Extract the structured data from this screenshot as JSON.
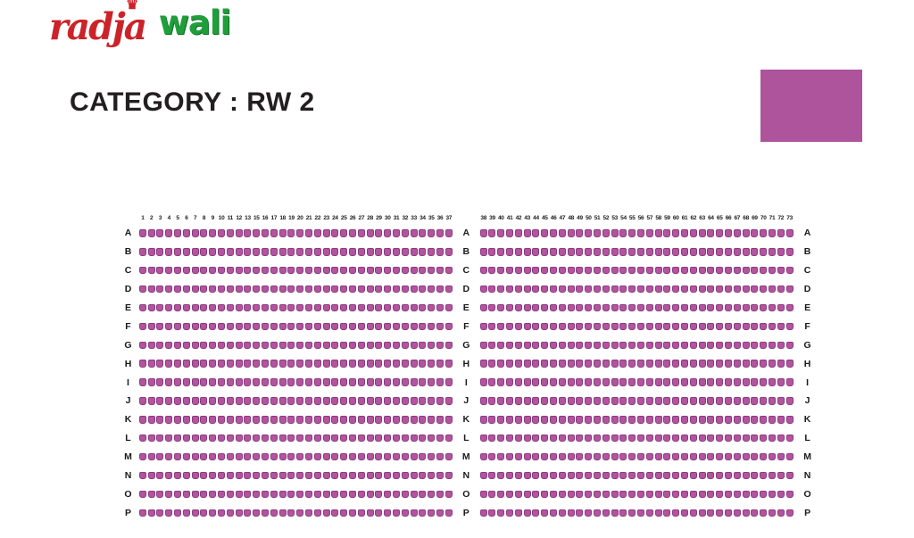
{
  "logo": {
    "brand_primary": "radja",
    "brand_secondary": "wali",
    "crown_icon": "♛",
    "primary_color": "#cc2229",
    "secondary_color": "#1f9e3a"
  },
  "page": {
    "title": "CATEGORY : RW 2"
  },
  "legend": {
    "category_color": "#ad549c"
  },
  "seat_map": {
    "rows": [
      "A",
      "B",
      "C",
      "D",
      "E",
      "F",
      "G",
      "H",
      "I",
      "J",
      "K",
      "L",
      "M",
      "N",
      "O",
      "P"
    ],
    "left_block_numbers": [
      "1",
      "2",
      "3",
      "4",
      "5",
      "6",
      "7",
      "8",
      "9",
      "10",
      "11",
      "12",
      "13",
      "15",
      "16",
      "17",
      "18",
      "19",
      "20",
      "21",
      "22",
      "23",
      "24",
      "25",
      "26",
      "27",
      "28",
      "29",
      "30",
      "31",
      "32",
      "33",
      "34",
      "35",
      "36",
      "37"
    ],
    "right_block_numbers": [
      "38",
      "39",
      "40",
      "41",
      "42",
      "43",
      "44",
      "45",
      "46",
      "47",
      "48",
      "49",
      "50",
      "51",
      "52",
      "53",
      "54",
      "55",
      "56",
      "57",
      "58",
      "59",
      "60",
      "61",
      "62",
      "63",
      "64",
      "65",
      "66",
      "67",
      "68",
      "69",
      "70",
      "71",
      "72",
      "73"
    ],
    "seat_fill": "#b2559e",
    "seat_border": "#8c3980"
  }
}
